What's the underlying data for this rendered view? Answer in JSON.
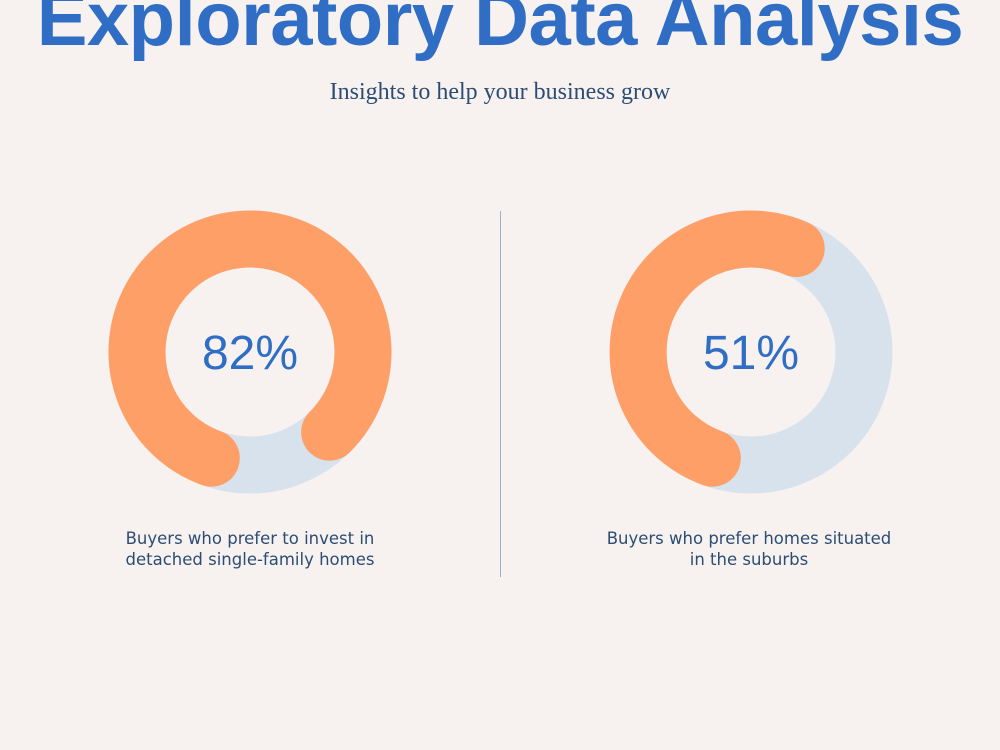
{
  "header": {
    "title": "Exploratory Data Analysis",
    "subtitle": "Insights to help your business grow"
  },
  "colors": {
    "background": "#f7f2ef",
    "title": "#2f6ec4",
    "text": "#2c4d73",
    "ring_track": "#d8e2ec",
    "ring_fill": "#ff9f68",
    "divider": "#9bb1cc"
  },
  "chart_data": [
    {
      "type": "pie",
      "value": 82,
      "label": "82%",
      "caption_lines": [
        "Buyers who prefer to invest in",
        "detached single-family homes"
      ]
    },
    {
      "type": "pie",
      "value": 51,
      "label": "51%",
      "caption_lines": [
        "Buyers who prefer homes situated",
        "in the suburbs"
      ]
    }
  ]
}
